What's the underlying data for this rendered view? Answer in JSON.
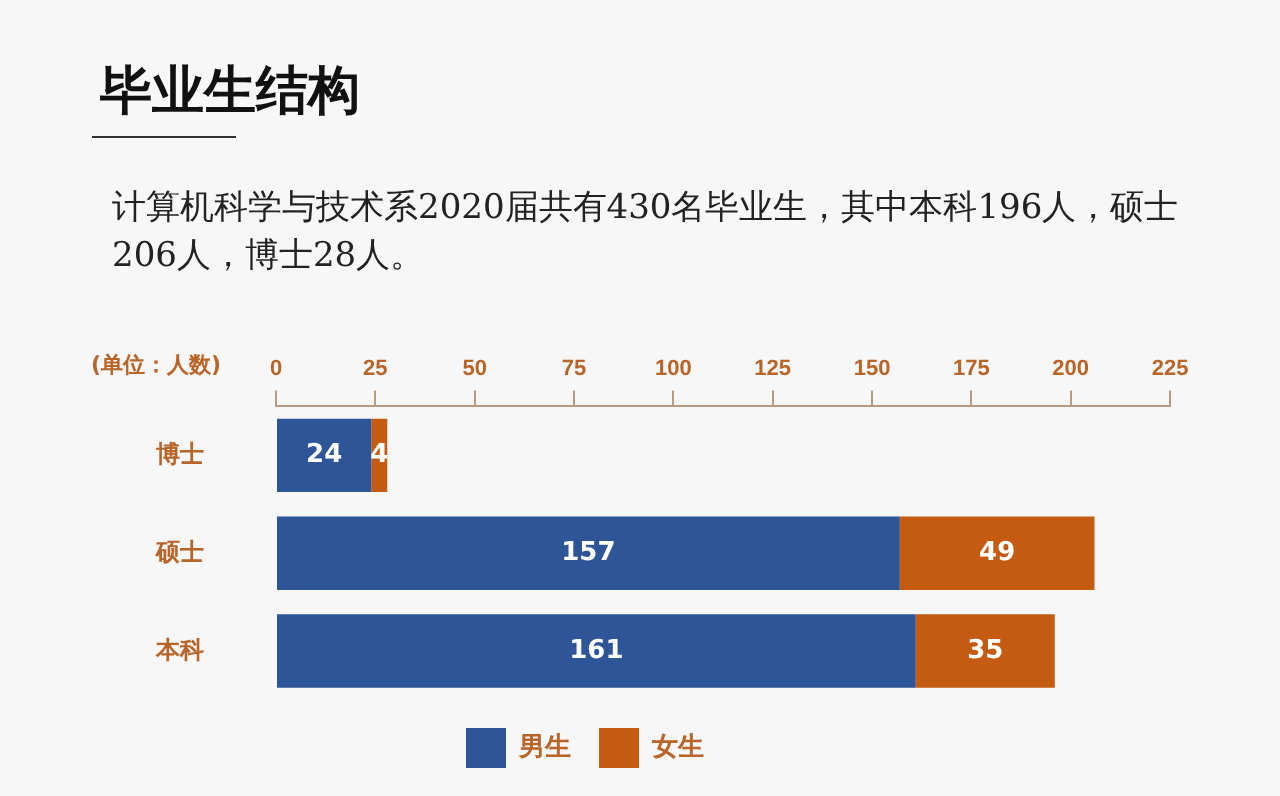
{
  "chart_data": {
    "type": "bar",
    "orientation": "horizontal",
    "stacked": true,
    "title": "毕业生结构",
    "subtitle": "计算机科学与技术系2020届共有430名毕业生，其中本科196人，硕士206人，博士28人。",
    "xlabel": "(单位：人数)",
    "categories": [
      "博士",
      "硕士",
      "本科"
    ],
    "series": [
      {
        "name": "男生",
        "color": "#2e5597",
        "values": [
          24,
          157,
          161
        ]
      },
      {
        "name": "女生",
        "color": "#c55a11",
        "values": [
          4,
          49,
          35
        ]
      }
    ],
    "xlim": [
      0,
      225
    ],
    "xticks": [
      0,
      25,
      50,
      75,
      100,
      125,
      150,
      175,
      200,
      225
    ],
    "data_labels": true,
    "grid": false,
    "legend": "bottom"
  }
}
